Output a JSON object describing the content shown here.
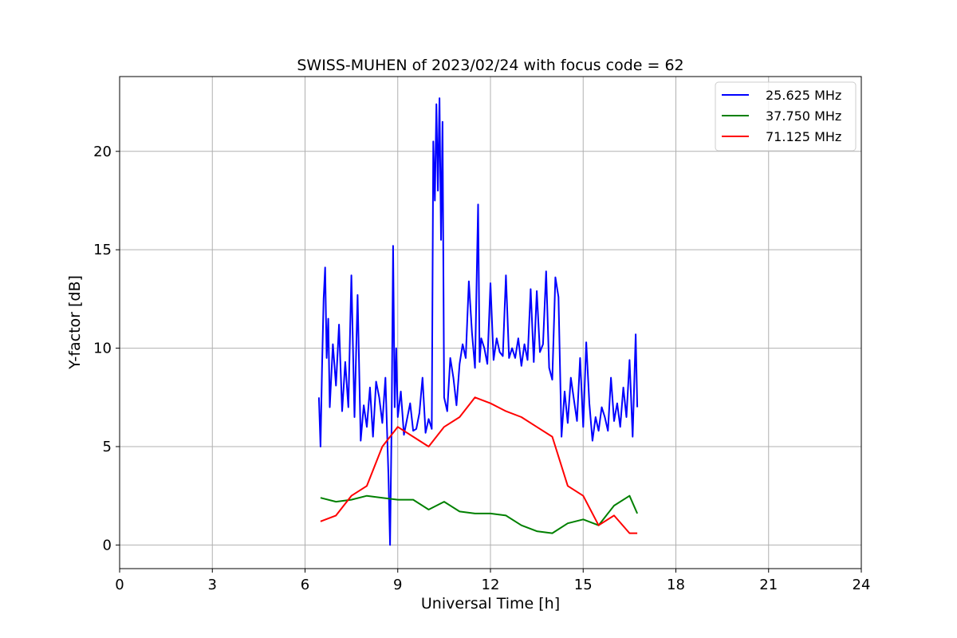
{
  "chart_data": {
    "type": "line",
    "title": "SWISS-MUHEN of 2023/02/24 with focus code = 62",
    "xlabel": "Universal Time [h]",
    "ylabel": "Y-factor [dB]",
    "xlim": [
      0,
      24
    ],
    "ylim": [
      -1.2,
      23.8
    ],
    "xticks": [
      0,
      3,
      6,
      9,
      12,
      15,
      18,
      21,
      24
    ],
    "yticks": [
      0,
      5,
      10,
      15,
      20
    ],
    "grid": true,
    "legend_position": "top-right",
    "series": [
      {
        "name": "25.625 MHz",
        "color": "#0000ff",
        "x": [
          6.45,
          6.5,
          6.55,
          6.6,
          6.65,
          6.7,
          6.75,
          6.8,
          6.9,
          7.0,
          7.1,
          7.2,
          7.3,
          7.4,
          7.5,
          7.6,
          7.7,
          7.8,
          7.9,
          8.0,
          8.1,
          8.2,
          8.3,
          8.4,
          8.5,
          8.6,
          8.7,
          8.75,
          8.8,
          8.85,
          8.9,
          8.95,
          9.0,
          9.1,
          9.2,
          9.3,
          9.4,
          9.5,
          9.6,
          9.7,
          9.8,
          9.9,
          10.0,
          10.1,
          10.15,
          10.2,
          10.25,
          10.3,
          10.35,
          10.4,
          10.45,
          10.5,
          10.6,
          10.7,
          10.8,
          10.9,
          11.0,
          11.1,
          11.2,
          11.3,
          11.4,
          11.5,
          11.6,
          11.65,
          11.7,
          11.8,
          11.9,
          12.0,
          12.1,
          12.2,
          12.3,
          12.4,
          12.5,
          12.6,
          12.7,
          12.8,
          12.9,
          13.0,
          13.1,
          13.2,
          13.3,
          13.4,
          13.5,
          13.6,
          13.7,
          13.8,
          13.9,
          14.0,
          14.1,
          14.2,
          14.3,
          14.4,
          14.5,
          14.6,
          14.7,
          14.8,
          14.9,
          15.0,
          15.1,
          15.2,
          15.3,
          15.4,
          15.5,
          15.6,
          15.7,
          15.8,
          15.9,
          16.0,
          16.1,
          16.2,
          16.3,
          16.4,
          16.5,
          16.6,
          16.7,
          16.75
        ],
        "y": [
          7.5,
          5.0,
          9.0,
          12.5,
          14.1,
          9.5,
          11.5,
          7.0,
          10.2,
          8.1,
          11.2,
          6.8,
          9.3,
          7.0,
          13.7,
          6.5,
          12.7,
          5.3,
          7.1,
          6.0,
          8.0,
          5.5,
          8.3,
          7.5,
          6.2,
          8.5,
          3.5,
          0.0,
          6.0,
          15.2,
          7.0,
          10.0,
          6.5,
          7.8,
          5.6,
          6.4,
          7.2,
          5.8,
          5.9,
          6.7,
          8.5,
          5.7,
          6.4,
          5.9,
          20.5,
          17.5,
          22.4,
          18.0,
          22.7,
          15.5,
          21.5,
          7.5,
          6.8,
          9.5,
          8.5,
          7.1,
          9.2,
          10.2,
          9.5,
          13.4,
          10.8,
          9.0,
          17.3,
          9.3,
          10.5,
          10.0,
          9.2,
          13.3,
          9.4,
          10.5,
          9.8,
          9.6,
          13.7,
          9.5,
          10.0,
          9.5,
          10.5,
          9.1,
          10.2,
          9.4,
          13.0,
          9.3,
          12.9,
          9.8,
          10.2,
          13.9,
          9.0,
          8.4,
          13.6,
          12.6,
          5.5,
          7.8,
          6.2,
          8.5,
          7.4,
          6.3,
          9.5,
          6.0,
          10.3,
          7.2,
          5.3,
          6.5,
          5.8,
          7.0,
          6.5,
          5.8,
          8.5,
          6.3,
          7.2,
          6.0,
          8.0,
          6.5,
          9.4,
          5.5,
          10.7,
          7.0
        ]
      },
      {
        "name": "37.750 MHz",
        "color": "#008000",
        "x": [
          6.5,
          7.0,
          7.5,
          8.0,
          8.5,
          9.0,
          9.5,
          10.0,
          10.5,
          11.0,
          11.5,
          12.0,
          12.5,
          13.0,
          13.5,
          14.0,
          14.5,
          15.0,
          15.5,
          16.0,
          16.5,
          16.75
        ],
        "y": [
          2.4,
          2.2,
          2.3,
          2.5,
          2.4,
          2.3,
          2.3,
          1.8,
          2.2,
          1.7,
          1.6,
          1.6,
          1.5,
          1.0,
          0.7,
          0.6,
          1.1,
          1.3,
          1.0,
          2.0,
          2.5,
          1.6
        ]
      },
      {
        "name": "71.125 MHz",
        "color": "#ff0000",
        "x": [
          6.5,
          7.0,
          7.5,
          8.0,
          8.5,
          9.0,
          9.5,
          10.0,
          10.5,
          11.0,
          11.5,
          12.0,
          12.5,
          13.0,
          13.5,
          14.0,
          14.5,
          15.0,
          15.5,
          16.0,
          16.5,
          16.75
        ],
        "y": [
          1.2,
          1.5,
          2.5,
          3.0,
          5.0,
          6.0,
          5.5,
          5.0,
          6.0,
          6.5,
          7.5,
          7.2,
          6.8,
          6.5,
          6.0,
          5.5,
          3.0,
          2.5,
          1.0,
          1.5,
          0.6,
          0.6
        ]
      }
    ]
  }
}
